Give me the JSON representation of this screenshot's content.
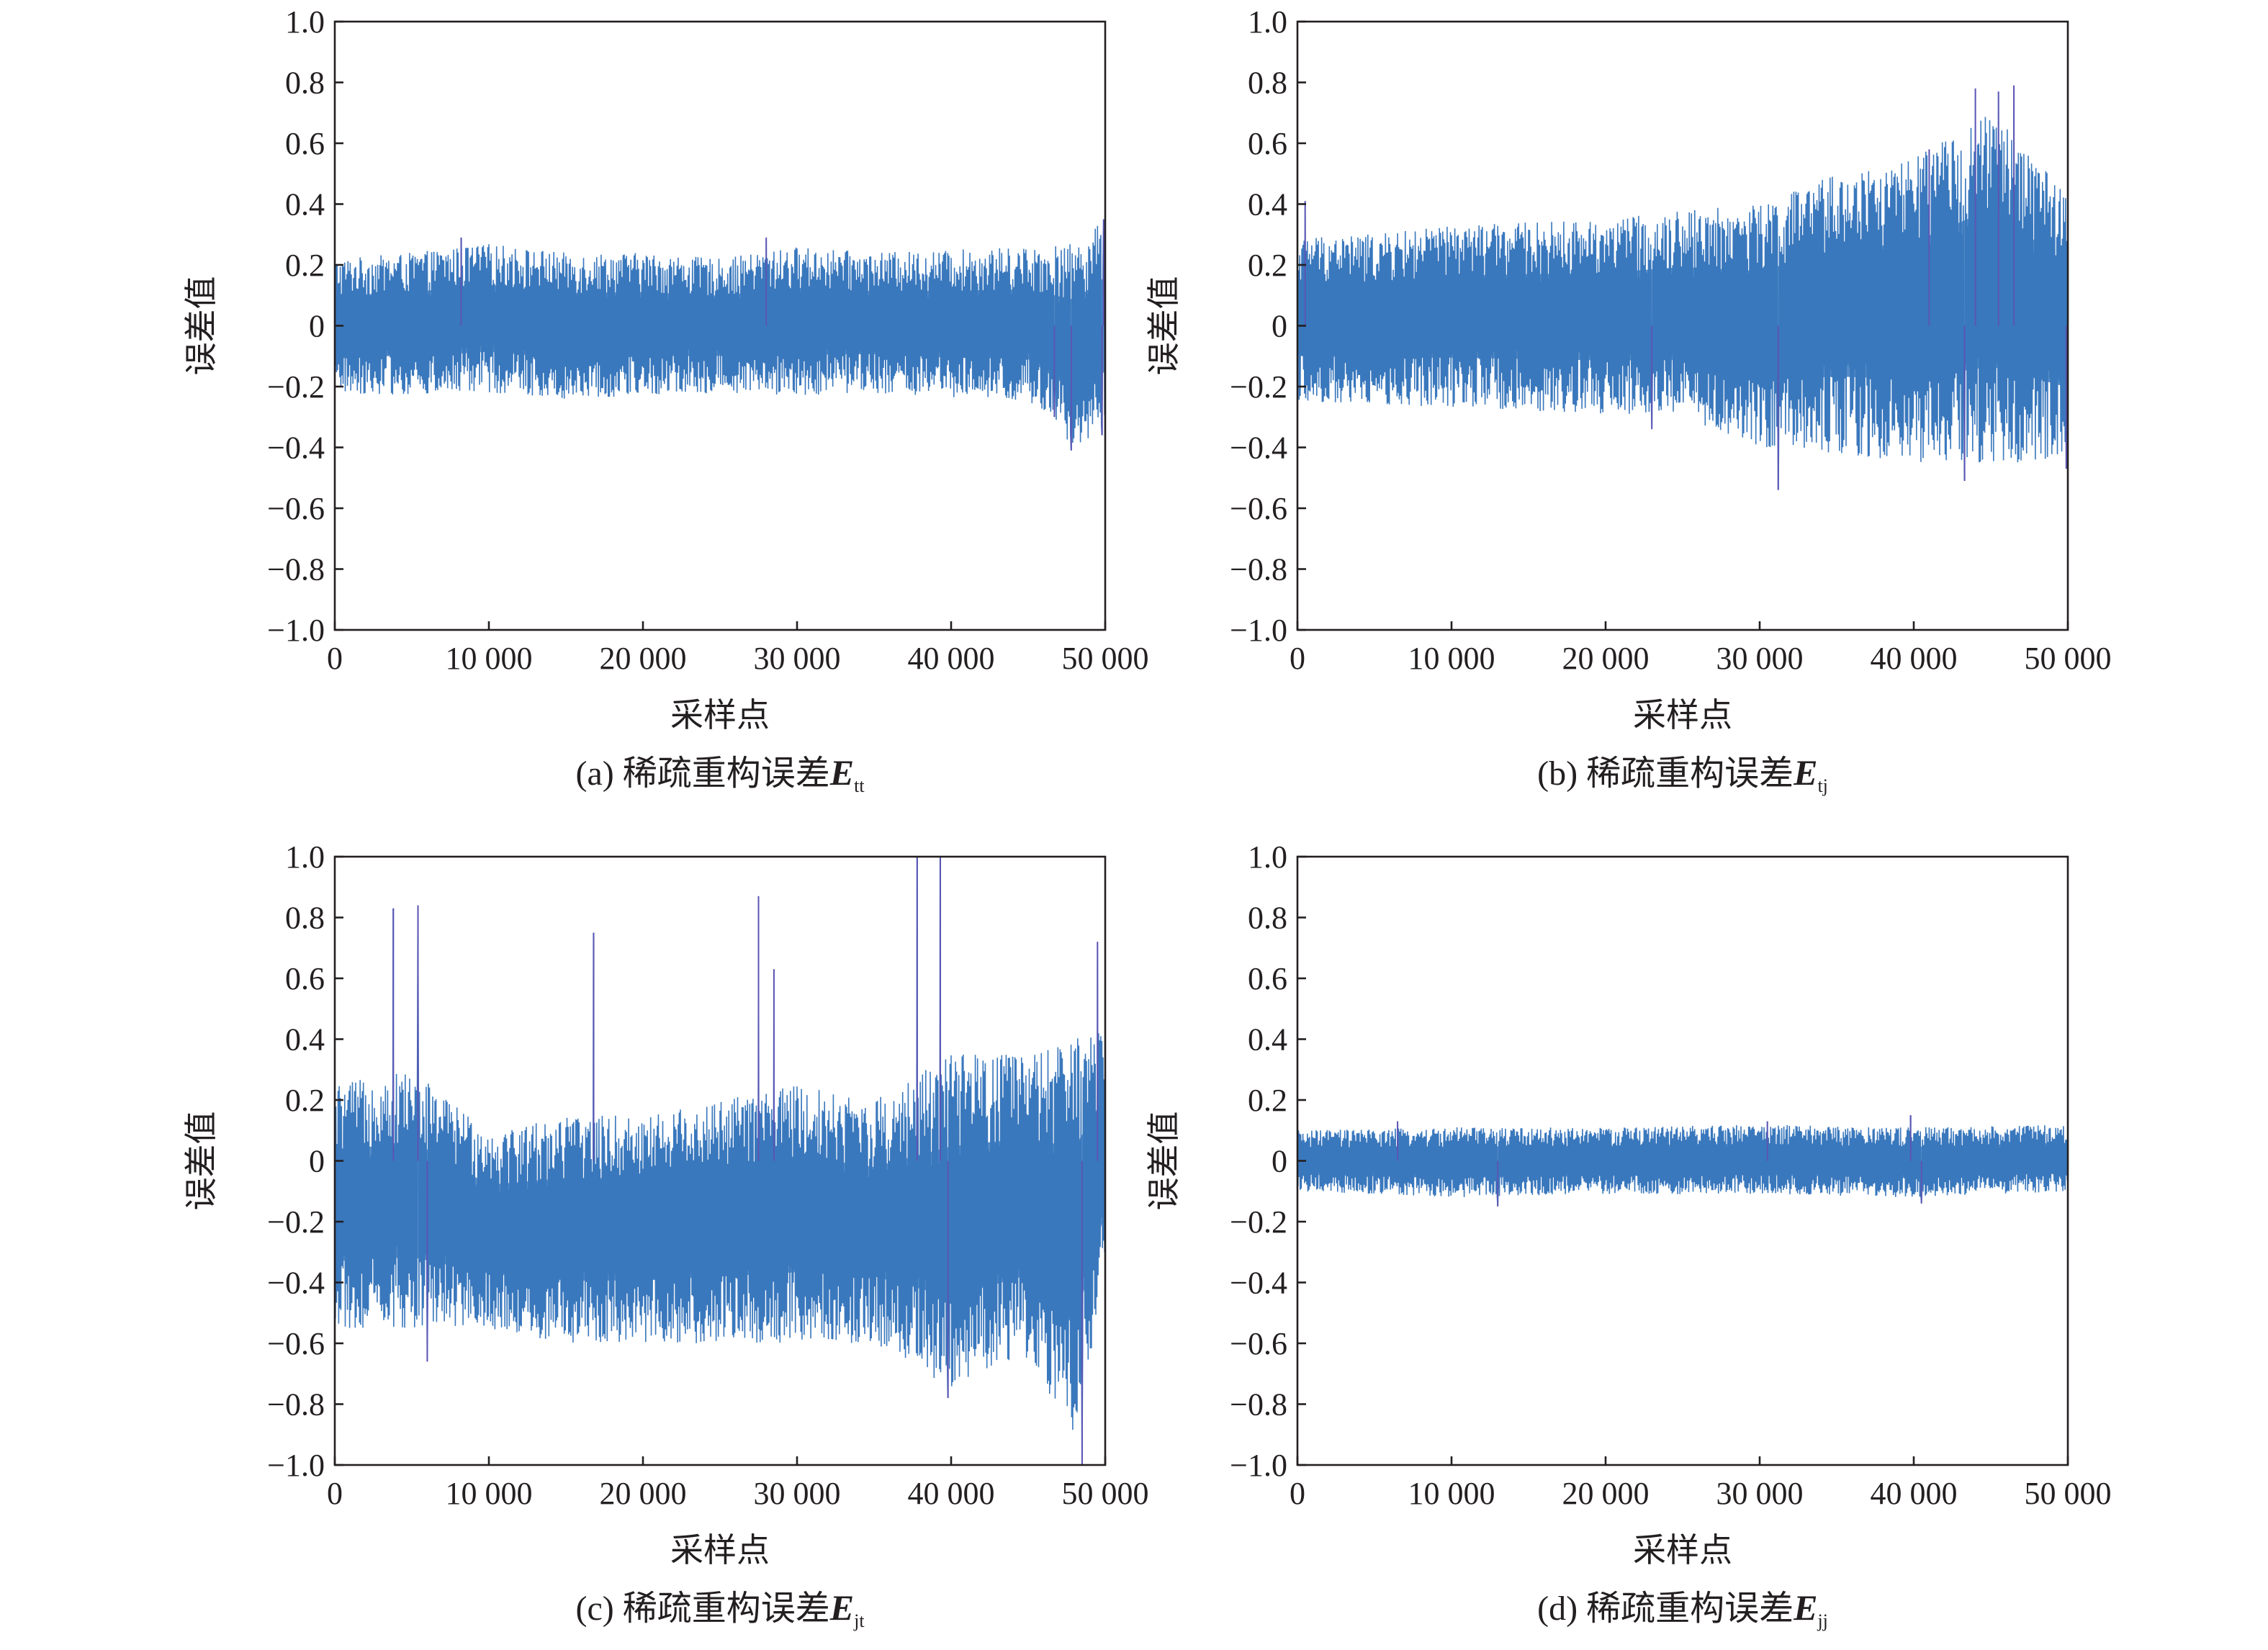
{
  "figure": {
    "colors": {
      "line": "#3a78bd",
      "line_edge": "#5b55b4",
      "axis": "#231f20",
      "background": "#ffffff"
    }
  },
  "chart_data": [
    {
      "type": "line",
      "panel": "a",
      "caption": {
        "text": "(a) 稀疏重构误差",
        "symbol": "E",
        "subscript": "tt"
      },
      "xlabel": "采样点",
      "ylabel": "误差值",
      "xlim": [
        0,
        50000
      ],
      "ylim": [
        -1.0,
        1.0
      ],
      "xticks": [
        0,
        10000,
        20000,
        30000,
        40000,
        50000
      ],
      "xtick_labels": [
        "0",
        "10 000",
        "20 000",
        "30 000",
        "40 000",
        "50 000"
      ],
      "yticks": [
        1.0,
        0.8,
        0.6,
        0.4,
        0.2,
        0,
        -0.2,
        -0.4,
        -0.6,
        -0.8,
        -1.0
      ],
      "ytick_labels": [
        "1.0",
        "0.8",
        "0.6",
        "0.4",
        "0.2",
        "0",
        "−0.2",
        "−0.4",
        "−0.6",
        "−0.8",
        "−1.0"
      ],
      "grid": false,
      "series": [
        {
          "envelope_x": [
            0,
            5000,
            10000,
            15000,
            20000,
            25000,
            30000,
            35000,
            40000,
            45000,
            48000,
            50000
          ],
          "upper": [
            0.22,
            0.24,
            0.27,
            0.24,
            0.24,
            0.22,
            0.26,
            0.24,
            0.25,
            0.26,
            0.27,
            0.35
          ],
          "lower": [
            -0.22,
            -0.23,
            -0.22,
            -0.24,
            -0.23,
            -0.22,
            -0.23,
            -0.22,
            -0.24,
            -0.25,
            -0.4,
            -0.34
          ],
          "spikes": [
            {
              "x": 8200,
              "y": 0.29
            },
            {
              "x": 28000,
              "y": 0.29
            },
            {
              "x": 47800,
              "y": -0.41
            },
            {
              "x": 46700,
              "y": -0.3
            },
            {
              "x": 49800,
              "y": -0.36
            },
            {
              "x": 49900,
              "y": 0.35
            }
          ]
        }
      ]
    },
    {
      "type": "line",
      "panel": "b",
      "caption": {
        "text": "(b) 稀疏重构误差",
        "symbol": "E",
        "subscript": "tj"
      },
      "xlabel": "采样点",
      "ylabel": "误差值",
      "xlim": [
        0,
        50000
      ],
      "ylim": [
        -1.0,
        1.0
      ],
      "xticks": [
        0,
        10000,
        20000,
        30000,
        40000,
        50000
      ],
      "xtick_labels": [
        "0",
        "10 000",
        "20 000",
        "30 000",
        "40 000",
        "50 000"
      ],
      "yticks": [
        1.0,
        0.8,
        0.6,
        0.4,
        0.2,
        0,
        -0.2,
        -0.4,
        -0.6,
        -0.8,
        -1.0
      ],
      "ytick_labels": [
        "1.0",
        "0.8",
        "0.6",
        "0.4",
        "0.2",
        "0",
        "−0.2",
        "−0.4",
        "−0.6",
        "−0.8",
        "−1.0"
      ],
      "grid": false,
      "series": [
        {
          "envelope_x": [
            0,
            5000,
            10000,
            15000,
            20000,
            25000,
            30000,
            35000,
            40000,
            45000,
            50000
          ],
          "upper": [
            0.3,
            0.3,
            0.33,
            0.34,
            0.35,
            0.38,
            0.4,
            0.5,
            0.55,
            0.7,
            0.45
          ],
          "lower": [
            -0.25,
            -0.26,
            -0.27,
            -0.28,
            -0.29,
            -0.3,
            -0.4,
            -0.42,
            -0.45,
            -0.45,
            -0.45
          ],
          "spikes": [
            {
              "x": 44000,
              "y": 0.78
            },
            {
              "x": 45500,
              "y": 0.77
            },
            {
              "x": 46500,
              "y": 0.79
            },
            {
              "x": 41000,
              "y": 0.58
            },
            {
              "x": 31200,
              "y": -0.54
            },
            {
              "x": 43300,
              "y": -0.51
            },
            {
              "x": 49900,
              "y": -0.47
            },
            {
              "x": 500,
              "y": 0.41
            },
            {
              "x": 23000,
              "y": -0.34
            }
          ]
        }
      ]
    },
    {
      "type": "line",
      "panel": "c",
      "caption": {
        "text": "(c) 稀疏重构误差",
        "symbol": "E",
        "subscript": "jt"
      },
      "xlabel": "采样点",
      "ylabel": "误差值",
      "xlim": [
        0,
        50000
      ],
      "ylim": [
        -1.0,
        1.0
      ],
      "xticks": [
        0,
        10000,
        20000,
        30000,
        40000,
        50000
      ],
      "xtick_labels": [
        "0",
        "10 000",
        "20 000",
        "30 000",
        "40 000",
        "50 000"
      ],
      "yticks": [
        1.0,
        0.8,
        0.6,
        0.4,
        0.2,
        0,
        -0.2,
        -0.4,
        -0.6,
        -0.8,
        -1.0
      ],
      "ytick_labels": [
        "1.0",
        "0.8",
        "0.6",
        "0.4",
        "0.2",
        "0",
        "−0.2",
        "−0.4",
        "−0.6",
        "−0.8",
        "−1.0"
      ],
      "grid": false,
      "series": [
        {
          "envelope_x": [
            0,
            5000,
            10000,
            15000,
            20000,
            25000,
            30000,
            35000,
            40000,
            45000,
            48000,
            50000
          ],
          "upper": [
            0.25,
            0.3,
            0.1,
            0.15,
            0.15,
            0.2,
            0.25,
            0.2,
            0.35,
            0.35,
            0.4,
            0.45
          ],
          "lower": [
            -0.55,
            -0.55,
            -0.55,
            -0.6,
            -0.6,
            -0.6,
            -0.6,
            -0.6,
            -0.75,
            -0.65,
            -0.9,
            -0.4
          ],
          "spikes": [
            {
              "x": 3800,
              "y": 0.83
            },
            {
              "x": 5400,
              "y": 0.84
            },
            {
              "x": 16800,
              "y": 0.75
            },
            {
              "x": 27500,
              "y": 0.87
            },
            {
              "x": 28500,
              "y": 0.63
            },
            {
              "x": 37800,
              "y": 1.0
            },
            {
              "x": 39300,
              "y": 1.0
            },
            {
              "x": 49500,
              "y": 0.72
            },
            {
              "x": 48500,
              "y": -1.0
            },
            {
              "x": 36000,
              "y": 0.0
            },
            {
              "x": 6000,
              "y": -0.66
            },
            {
              "x": 39800,
              "y": -0.78
            }
          ]
        }
      ]
    },
    {
      "type": "line",
      "panel": "d",
      "caption": {
        "text": "(d) 稀疏重构误差",
        "symbol": "E",
        "subscript": "jj"
      },
      "xlabel": "采样点",
      "ylabel": "误差值",
      "xlim": [
        0,
        50000
      ],
      "ylim": [
        -1.0,
        1.0
      ],
      "xticks": [
        0,
        10000,
        20000,
        30000,
        40000,
        50000
      ],
      "xtick_labels": [
        "0",
        "10 000",
        "20 000",
        "30 000",
        "40 000",
        "50 000"
      ],
      "yticks": [
        1.0,
        0.8,
        0.6,
        0.4,
        0.2,
        0,
        -0.2,
        -0.4,
        -0.6,
        -0.8,
        -1.0
      ],
      "ytick_labels": [
        "1.0",
        "0.8",
        "0.6",
        "0.4",
        "0.2",
        "0",
        "−0.2",
        "−0.4",
        "−0.6",
        "−0.8",
        "−1.0"
      ],
      "grid": false,
      "series": [
        {
          "envelope_x": [
            0,
            10000,
            20000,
            30000,
            40000,
            50000
          ],
          "upper": [
            0.1,
            0.11,
            0.11,
            0.12,
            0.11,
            0.12
          ],
          "lower": [
            -0.1,
            -0.12,
            -0.11,
            -0.11,
            -0.12,
            -0.1
          ],
          "spikes": [
            {
              "x": 30500,
              "y": 0.13
            },
            {
              "x": 39800,
              "y": 0.15
            },
            {
              "x": 6500,
              "y": 0.13
            },
            {
              "x": 13000,
              "y": -0.15
            },
            {
              "x": 40500,
              "y": -0.14
            }
          ]
        }
      ]
    }
  ]
}
